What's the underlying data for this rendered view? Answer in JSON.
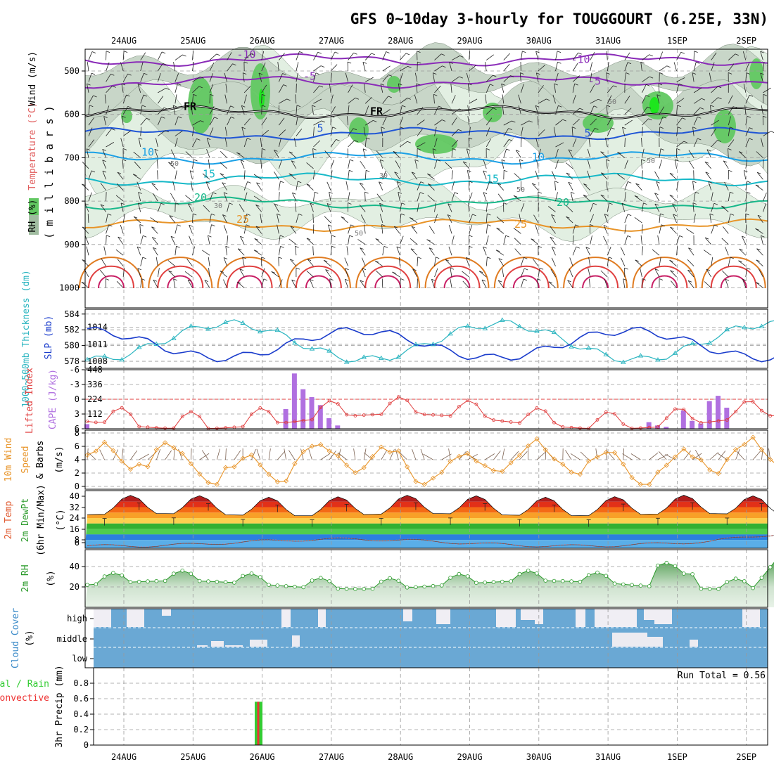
{
  "header": {
    "title": "GFS 0~10day 3-hourly for TOUGGOURT (6.25E, 33N)"
  },
  "date_labels": [
    "24AUG",
    "25AUG",
    "26AUG",
    "27AUG",
    "28AUG",
    "29AUG",
    "30AUG",
    "31AUG",
    "1SEP",
    "2SEP"
  ],
  "colors": {
    "rh_light": "#e2efe2",
    "rh_mid": "#c8d6c8",
    "rh_high": "#62c862",
    "rh_max": "#1ee61e",
    "cape": "#b070e0",
    "lifted": "#e03c3c",
    "thickness": "#2ab5c0",
    "slp": "#1a3ccc",
    "wind_speed": "#e89428",
    "cloud_blue": "#6aa8d4",
    "precip_green": "#33cc33",
    "precip_red": "#ee3333",
    "rh2m": "#2a9a2a"
  },
  "chart_data": [
    {
      "type": "contour",
      "panel": "upper-air",
      "ylabel_parts": [
        "RH (%)",
        "Temperature (°C)",
        "Wind (m/s)"
      ],
      "ylabel_units": "( m i l l i b a r s )",
      "y_ticks": [
        500,
        600,
        700,
        800,
        900,
        1000
      ],
      "ylim": [
        450,
        1050
      ],
      "y_reversed": true,
      "isotherms": [
        {
          "label": "-10",
          "level": 475,
          "color": "#8a2bb8"
        },
        {
          "label": "-5",
          "level": 525,
          "color": "#8a2bb8"
        },
        {
          "label": "FR",
          "level": 595,
          "color": "#000000"
        },
        {
          "label": "5",
          "level": 645,
          "color": "#1f55d6"
        },
        {
          "label": "10",
          "level": 700,
          "color": "#1aa0e6"
        },
        {
          "label": "15",
          "level": 750,
          "color": "#18b9c8"
        },
        {
          "label": "20",
          "level": 805,
          "color": "#18b88a"
        },
        {
          "label": "25",
          "level": 855,
          "color": "#e89428"
        }
      ],
      "rh_labels": [
        "50",
        "30",
        "50",
        "30",
        "50",
        "50",
        "50"
      ]
    },
    {
      "type": "line",
      "panel": "thickness-slp",
      "ylabel_left": "1000~500mb Thickness (dm)",
      "ylabel_right": "SLP (mb)",
      "left_ticks": [
        578,
        580,
        582,
        584
      ],
      "right_ticks": [
        1008,
        1011,
        1014
      ],
      "series": [
        {
          "name": "Thickness",
          "axis": "left",
          "color": "#2ab5c0"
        },
        {
          "name": "SLP",
          "axis": "right",
          "color": "#1a3ccc"
        }
      ],
      "right_range": [
        1006.4,
        1016.8
      ]
    },
    {
      "type": "bar-line",
      "panel": "cape-li",
      "ylabel_left": "Lifted Index",
      "ylabel_right": "CAPE (J/kg)",
      "left_ticks": [
        "-6",
        "-3",
        "0",
        "3",
        "6"
      ],
      "right_ticks": [
        112,
        224,
        336,
        448
      ],
      "cape_bars": [
        {
          "step": 0,
          "value": 35
        },
        {
          "step": 23,
          "value": 150
        },
        {
          "step": 24,
          "value": 420
        },
        {
          "step": 25,
          "value": 300
        },
        {
          "step": 26,
          "value": 240
        },
        {
          "step": 27,
          "value": 180
        },
        {
          "step": 28,
          "value": 80
        },
        {
          "step": 29,
          "value": 25
        },
        {
          "step": 65,
          "value": 50
        },
        {
          "step": 66,
          "value": 25
        },
        {
          "step": 67,
          "value": 15
        },
        {
          "step": 69,
          "value": 140
        },
        {
          "step": 70,
          "value": 60
        },
        {
          "step": 71,
          "value": 40
        },
        {
          "step": 72,
          "value": 210
        },
        {
          "step": 73,
          "value": 250
        },
        {
          "step": 74,
          "value": 160
        }
      ]
    },
    {
      "type": "line",
      "panel": "wind10m",
      "ylabel_parts": [
        "10m Wind",
        "Speed",
        "& Barbs",
        "(m/s)"
      ],
      "y_ticks": [
        0,
        2,
        4,
        6,
        8
      ],
      "ylim": [
        0,
        8.5
      ]
    },
    {
      "type": "area",
      "panel": "temp2m",
      "ylabel_parts": [
        "2m Temp",
        "2m DewPt",
        "(6hr Min/Max)",
        "(°C)"
      ],
      "y_ticks": [
        "40",
        "32",
        "24",
        "16",
        "8",
        "6"
      ],
      "ylim": [
        2,
        42
      ]
    },
    {
      "type": "area",
      "panel": "rh2m",
      "ylabel_parts": [
        "2m RH",
        "(%)"
      ],
      "y_ticks": [
        20,
        40
      ],
      "ylim": [
        0,
        62
      ]
    },
    {
      "type": "bar",
      "panel": "cloud-cover",
      "ylabel_parts": [
        "Cloud Cover",
        "(%)"
      ],
      "levels": [
        "high",
        "middle",
        "low"
      ]
    },
    {
      "type": "bar",
      "panel": "precip",
      "ylabel_parts": [
        "Total / Rain",
        "Convective",
        "3hr Precip (mm)"
      ],
      "y_ticks": [
        "0",
        "0.2",
        "0.4",
        "0.6",
        "0.8"
      ],
      "ylim": [
        0,
        0.95
      ],
      "run_total": "Run Total = 0.56",
      "bars": [
        {
          "step": 19,
          "total": 0.56,
          "convective": 0.56
        }
      ]
    }
  ]
}
